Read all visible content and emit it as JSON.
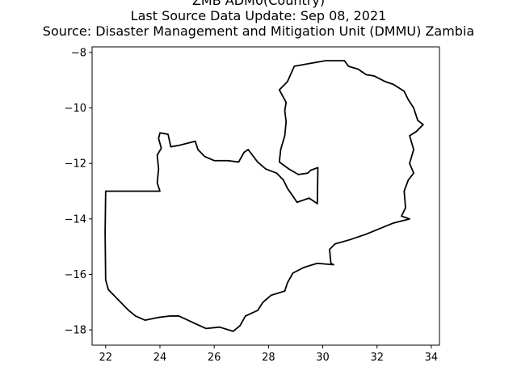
{
  "title_lines": [
    "ZMB ADM0(Country)",
    "Last Source Data Update: Sep 08, 2021",
    "Source: Disaster Management and Mitigation Unit (DMMU) Zambia"
  ],
  "chart_data": {
    "type": "map",
    "xlim": [
      21.5,
      34.3
    ],
    "ylim": [
      -18.55,
      -7.8
    ],
    "xticks": [
      22,
      24,
      26,
      28,
      30,
      32,
      34
    ],
    "yticks": [
      -8,
      -10,
      -12,
      -14,
      -16,
      -18
    ],
    "xtick_labels": [
      "22",
      "24",
      "26",
      "28",
      "30",
      "32",
      "34"
    ],
    "ytick_labels": [
      "−8",
      "−10",
      "−12",
      "−14",
      "−16",
      "−18"
    ],
    "grid": false,
    "boundary_color": "#000000",
    "boundary": [
      [
        30.8,
        -8.3
      ],
      [
        30.95,
        -8.5
      ],
      [
        31.3,
        -8.6
      ],
      [
        31.6,
        -8.8
      ],
      [
        31.9,
        -8.85
      ],
      [
        32.3,
        -9.05
      ],
      [
        32.6,
        -9.15
      ],
      [
        33.0,
        -9.4
      ],
      [
        33.15,
        -9.7
      ],
      [
        33.35,
        -10.0
      ],
      [
        33.5,
        -10.45
      ],
      [
        33.7,
        -10.6
      ],
      [
        33.45,
        -10.85
      ],
      [
        33.2,
        -11.0
      ],
      [
        33.35,
        -11.5
      ],
      [
        33.2,
        -12.0
      ],
      [
        33.35,
        -12.35
      ],
      [
        33.15,
        -12.6
      ],
      [
        33.0,
        -13.0
      ],
      [
        33.05,
        -13.6
      ],
      [
        32.9,
        -13.9
      ],
      [
        33.2,
        -14.0
      ],
      [
        32.6,
        -14.15
      ],
      [
        32.1,
        -14.35
      ],
      [
        31.6,
        -14.55
      ],
      [
        31.0,
        -14.75
      ],
      [
        30.45,
        -14.9
      ],
      [
        30.25,
        -15.1
      ],
      [
        30.3,
        -15.6
      ],
      [
        30.4,
        -15.65
      ],
      [
        29.8,
        -15.6
      ],
      [
        29.3,
        -15.75
      ],
      [
        28.9,
        -15.95
      ],
      [
        28.7,
        -16.3
      ],
      [
        28.6,
        -16.6
      ],
      [
        28.1,
        -16.75
      ],
      [
        27.8,
        -17.0
      ],
      [
        27.6,
        -17.3
      ],
      [
        27.15,
        -17.5
      ],
      [
        26.95,
        -17.85
      ],
      [
        26.7,
        -18.05
      ],
      [
        26.2,
        -17.9
      ],
      [
        25.7,
        -17.95
      ],
      [
        25.25,
        -17.75
      ],
      [
        24.7,
        -17.5
      ],
      [
        24.35,
        -17.5
      ],
      [
        23.95,
        -17.55
      ],
      [
        23.45,
        -17.65
      ],
      [
        23.1,
        -17.5
      ],
      [
        22.85,
        -17.3
      ],
      [
        22.45,
        -16.9
      ],
      [
        22.1,
        -16.55
      ],
      [
        22.0,
        -16.2
      ],
      [
        21.98,
        -14.5
      ],
      [
        22.0,
        -13.0
      ],
      [
        24.0,
        -13.0
      ],
      [
        23.9,
        -12.7
      ],
      [
        23.95,
        -12.2
      ],
      [
        23.9,
        -11.7
      ],
      [
        24.05,
        -11.45
      ],
      [
        23.95,
        -11.1
      ],
      [
        24.0,
        -10.9
      ],
      [
        24.3,
        -10.95
      ],
      [
        24.4,
        -11.4
      ],
      [
        24.7,
        -11.35
      ],
      [
        25.3,
        -11.2
      ],
      [
        25.4,
        -11.5
      ],
      [
        25.65,
        -11.75
      ],
      [
        26.0,
        -11.9
      ],
      [
        26.5,
        -11.9
      ],
      [
        26.9,
        -11.95
      ],
      [
        27.1,
        -11.6
      ],
      [
        27.25,
        -11.5
      ],
      [
        27.6,
        -11.95
      ],
      [
        27.9,
        -12.2
      ],
      [
        28.3,
        -12.35
      ],
      [
        28.55,
        -12.6
      ],
      [
        28.7,
        -12.9
      ],
      [
        28.95,
        -13.25
      ],
      [
        29.05,
        -13.4
      ],
      [
        29.5,
        -13.25
      ],
      [
        29.8,
        -13.45
      ],
      [
        29.82,
        -12.15
      ],
      [
        29.55,
        -12.25
      ],
      [
        29.45,
        -12.35
      ],
      [
        29.1,
        -12.4
      ],
      [
        28.75,
        -12.2
      ],
      [
        28.4,
        -11.95
      ],
      [
        28.45,
        -11.5
      ],
      [
        28.6,
        -11.0
      ],
      [
        28.65,
        -10.5
      ],
      [
        28.6,
        -10.1
      ],
      [
        28.65,
        -9.8
      ],
      [
        28.4,
        -9.35
      ],
      [
        28.7,
        -9.05
      ],
      [
        28.95,
        -8.5
      ],
      [
        29.5,
        -8.4
      ],
      [
        30.1,
        -8.3
      ],
      [
        30.8,
        -8.3
      ]
    ]
  }
}
